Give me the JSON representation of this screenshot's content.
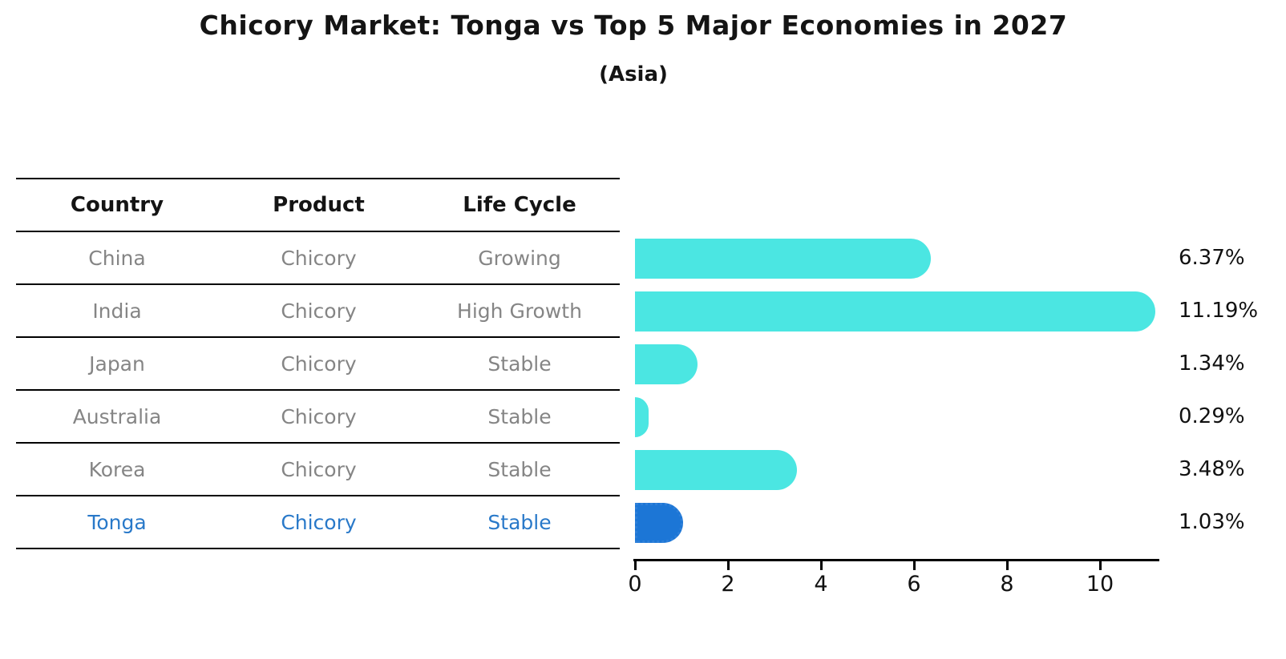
{
  "title": "Chicory Market: Tonga vs Top 5 Major Economies in 2027",
  "subtitle": "(Asia)",
  "table": {
    "headers": [
      "Country",
      "Product",
      "Life Cycle"
    ],
    "rows": [
      {
        "country": "China",
        "product": "Chicory",
        "life_cycle": "Growing",
        "highlight": false
      },
      {
        "country": "India",
        "product": "Chicory",
        "life_cycle": "High Growth",
        "highlight": false
      },
      {
        "country": "Japan",
        "product": "Chicory",
        "life_cycle": "Stable",
        "highlight": false
      },
      {
        "country": "Australia",
        "product": "Chicory",
        "life_cycle": "Stable",
        "highlight": false
      },
      {
        "country": "Korea",
        "product": "Chicory",
        "life_cycle": "Stable",
        "highlight": false
      },
      {
        "country": "Tonga",
        "product": "Chicory",
        "life_cycle": "Stable",
        "highlight": true
      }
    ]
  },
  "chart_data": {
    "type": "bar",
    "orientation": "horizontal",
    "title": "Chicory Market: Tonga vs Top 5 Major Economies in 2027",
    "subtitle": "(Asia)",
    "categories": [
      "China",
      "India",
      "Japan",
      "Australia",
      "Korea",
      "Tonga"
    ],
    "values": [
      6.37,
      11.19,
      1.34,
      0.29,
      3.48,
      1.03
    ],
    "value_labels": [
      "6.37%",
      "11.19%",
      "1.34%",
      "0.29%",
      "3.48%",
      "1.03%"
    ],
    "x_ticks": [
      0,
      2,
      4,
      6,
      8,
      10
    ],
    "xlim": [
      0,
      11.3
    ],
    "grid": false,
    "legend": false,
    "bar_color": "#4BE6E2",
    "highlight_color": "#1C76D6",
    "highlight_index": 5,
    "highlight_style": "dotted-border"
  },
  "colors": {
    "background": "#ffffff",
    "bar_cyan": "#4BE6E2",
    "bar_blue": "#1C76D6",
    "highlight_text": "#2979C9",
    "table_text": "#858585",
    "axis": "#000000"
  }
}
